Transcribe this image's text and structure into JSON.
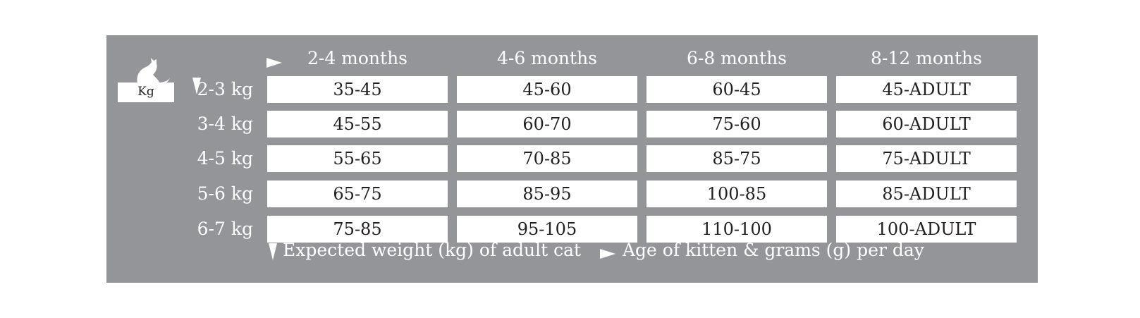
{
  "logo": {
    "text": "Kg",
    "icon": "cat-on-scale-icon"
  },
  "columns": [
    "2-4 months",
    "4-6 months",
    "6-8 months",
    "8-12 months"
  ],
  "rows": [
    {
      "label": "2-3 kg",
      "values": [
        "35-45",
        "45-60",
        "60-45",
        "45-ADULT"
      ]
    },
    {
      "label": "3-4 kg",
      "values": [
        "45-55",
        "60-70",
        "75-60",
        "60-ADULT"
      ]
    },
    {
      "label": "4-5 kg",
      "values": [
        "55-65",
        "70-85",
        "85-75",
        "75-ADULT"
      ]
    },
    {
      "label": "5-6 kg",
      "values": [
        "65-75",
        "85-95",
        "100-85",
        "85-ADULT"
      ]
    },
    {
      "label": "6-7 kg",
      "values": [
        "75-85",
        "95-105",
        "110-100",
        "100-ADULT"
      ]
    }
  ],
  "legend": {
    "weight": "Expected weight (kg) of adult cat",
    "age": "Age of kitten & grams (g) per day"
  },
  "colors": {
    "panel": "#939598",
    "cell": "#ffffff",
    "text_dark": "#231f20"
  }
}
